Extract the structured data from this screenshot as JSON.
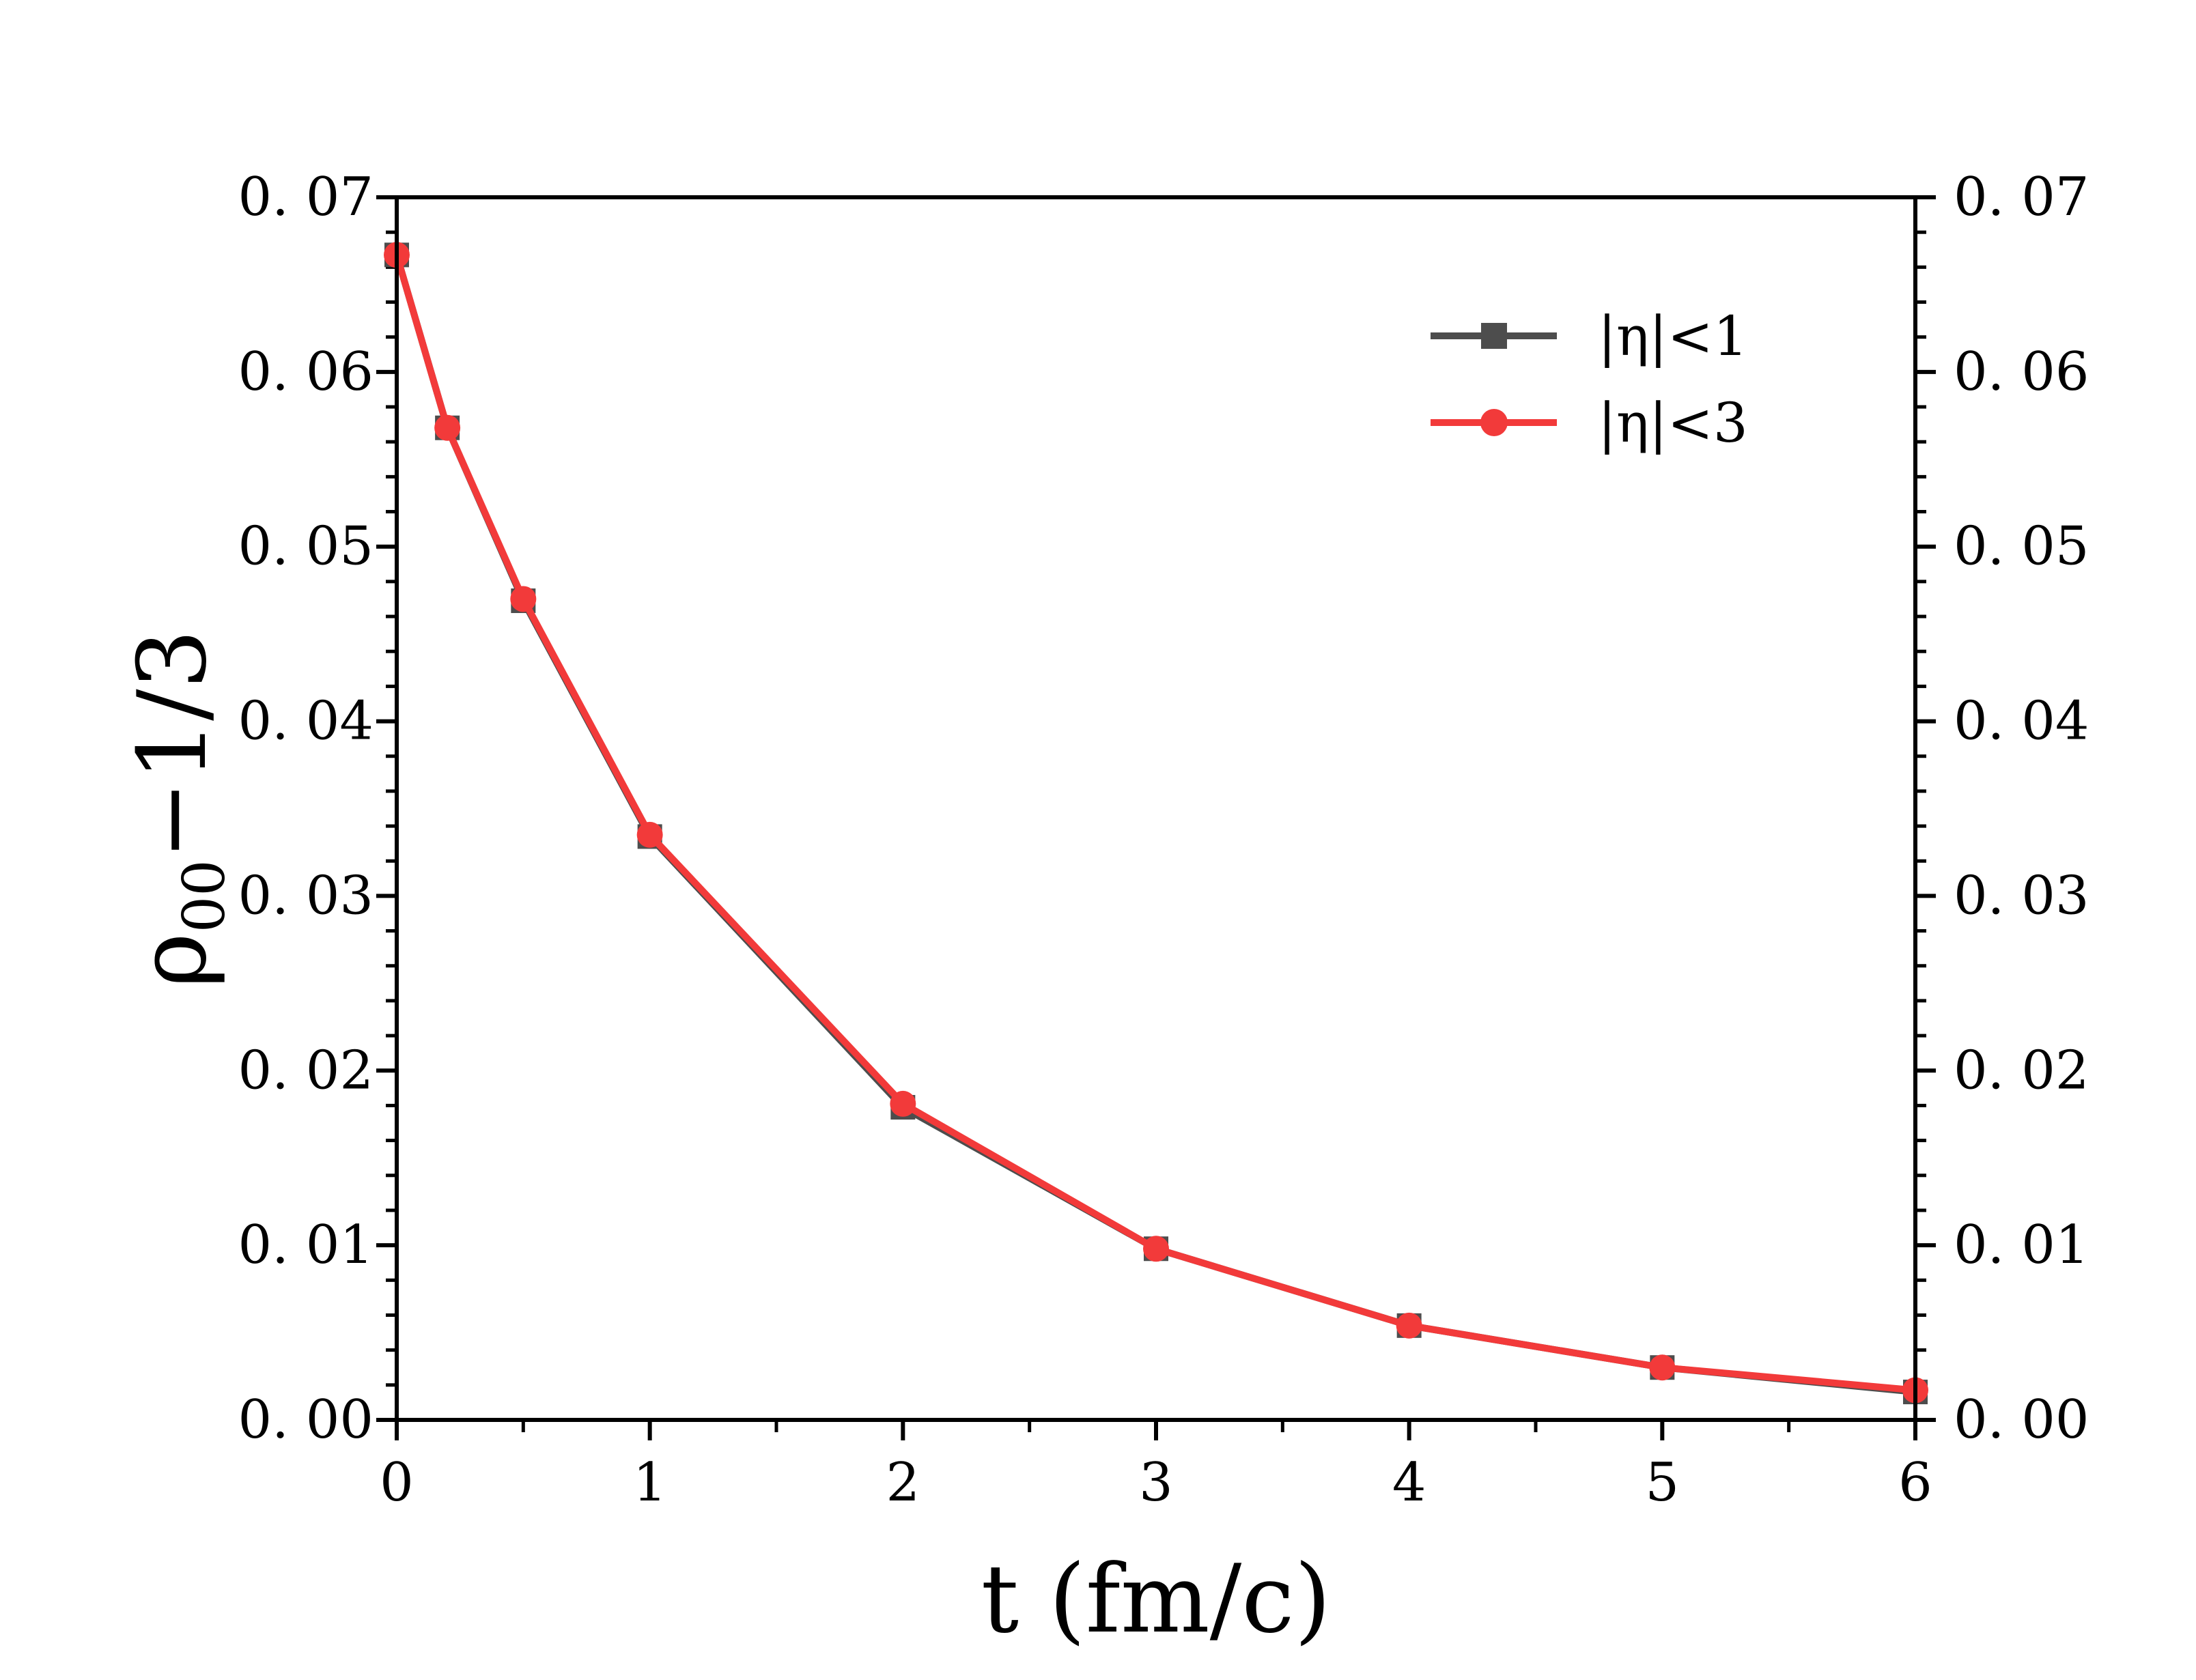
{
  "chart_data": {
    "type": "line",
    "title": "",
    "xlabel": "t (fm/c)",
    "ylabel_main": "ρ",
    "ylabel_sub": "00",
    "ylabel_tail": "−1/3",
    "xlim": [
      0,
      6
    ],
    "ylim": [
      0,
      0.07
    ],
    "x_ticks": [
      "0",
      "1",
      "2",
      "3",
      "4",
      "5",
      "6"
    ],
    "y_ticks": [
      "0. 00",
      "0. 01",
      "0. 02",
      "0. 03",
      "0. 04",
      "0. 05",
      "0. 06",
      "0. 07"
    ],
    "grid": false,
    "legend_position": "top-right",
    "x": [
      0,
      0.2,
      0.5,
      1,
      2,
      3,
      4,
      5,
      6
    ],
    "series": [
      {
        "name": "|η|<1",
        "color": "#4d4d4d",
        "marker": "square",
        "values": [
          0.0667,
          0.0568,
          0.0469,
          0.0334,
          0.0179,
          0.0098,
          0.0054,
          0.003,
          0.0016
        ]
      },
      {
        "name": "|η|<3",
        "color": "#f23a3a",
        "marker": "circle",
        "values": [
          0.0667,
          0.0568,
          0.047,
          0.0335,
          0.0181,
          0.0098,
          0.0054,
          0.003,
          0.0017
        ]
      }
    ]
  }
}
